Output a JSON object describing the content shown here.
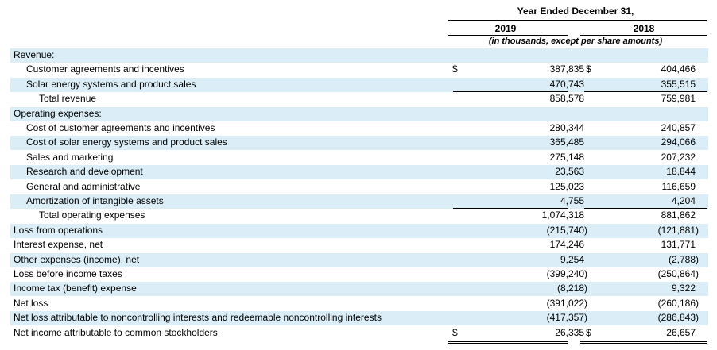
{
  "header": {
    "period": "Year Ended December 31,",
    "year_2019": "2019",
    "year_2018": "2018",
    "units": "(in thousands, except per share amounts)"
  },
  "rows": [
    {
      "label": "Revenue:",
      "indent": 0,
      "shaded": true,
      "v2019": "",
      "v2018": "",
      "currency": false
    },
    {
      "label": "Customer agreements and incentives",
      "indent": 1,
      "shaded": false,
      "v2019": "387,835",
      "v2018": "404,466",
      "currency": true
    },
    {
      "label": "Solar energy systems and product sales",
      "indent": 1,
      "shaded": true,
      "v2019": "470,743",
      "v2018": "355,515",
      "currency": false
    },
    {
      "label": "Total revenue",
      "indent": 2,
      "shaded": false,
      "v2019": "858,578",
      "v2018": "759,981",
      "currency": false
    },
    {
      "label": "Operating expenses:",
      "indent": 0,
      "shaded": true,
      "v2019": "",
      "v2018": "",
      "currency": false
    },
    {
      "label": "Cost of customer agreements and incentives",
      "indent": 1,
      "shaded": false,
      "v2019": "280,344",
      "v2018": "240,857",
      "currency": false
    },
    {
      "label": "Cost of solar energy systems and product sales",
      "indent": 1,
      "shaded": true,
      "v2019": "365,485",
      "v2018": "294,066",
      "currency": false
    },
    {
      "label": "Sales and marketing",
      "indent": 1,
      "shaded": false,
      "v2019": "275,148",
      "v2018": "207,232",
      "currency": false
    },
    {
      "label": "Research and development",
      "indent": 1,
      "shaded": true,
      "v2019": "23,563",
      "v2018": "18,844",
      "currency": false
    },
    {
      "label": "General and administrative",
      "indent": 1,
      "shaded": false,
      "v2019": "125,023",
      "v2018": "116,659",
      "currency": false
    },
    {
      "label": "Amortization of intangible assets",
      "indent": 1,
      "shaded": true,
      "v2019": "4,755",
      "v2018": "4,204",
      "currency": false
    },
    {
      "label": "Total operating expenses",
      "indent": 2,
      "shaded": false,
      "v2019": "1,074,318",
      "v2018": "881,862",
      "currency": false
    },
    {
      "label": "Loss from operations",
      "indent": 0,
      "shaded": true,
      "v2019": "(215,740)",
      "v2018": "(121,881)",
      "currency": false
    },
    {
      "label": "Interest expense, net",
      "indent": 0,
      "shaded": false,
      "v2019": "174,246",
      "v2018": "131,771",
      "currency": false
    },
    {
      "label": "Other expenses (income), net",
      "indent": 0,
      "shaded": true,
      "v2019": "9,254",
      "v2018": "(2,788)",
      "currency": false
    },
    {
      "label": "Loss before income taxes",
      "indent": 0,
      "shaded": false,
      "v2019": "(399,240)",
      "v2018": "(250,864)",
      "currency": false
    },
    {
      "label": "Income tax (benefit) expense",
      "indent": 0,
      "shaded": true,
      "v2019": "(8,218)",
      "v2018": "9,322",
      "currency": false
    },
    {
      "label": "Net loss",
      "indent": 0,
      "shaded": false,
      "v2019": "(391,022)",
      "v2018": "(260,186)",
      "currency": false
    },
    {
      "label": "Net loss attributable to noncontrolling interests and redeemable noncontrolling interests",
      "indent": 0,
      "shaded": true,
      "v2019": "(417,357)",
      "v2018": "(286,843)",
      "currency": false
    },
    {
      "label": "Net income attributable to common stockholders",
      "indent": 0,
      "shaded": false,
      "v2019": "26,335",
      "v2018": "26,657",
      "currency": true
    }
  ],
  "currency_symbol": "$",
  "colors": {
    "shade": "#dbeef7"
  }
}
